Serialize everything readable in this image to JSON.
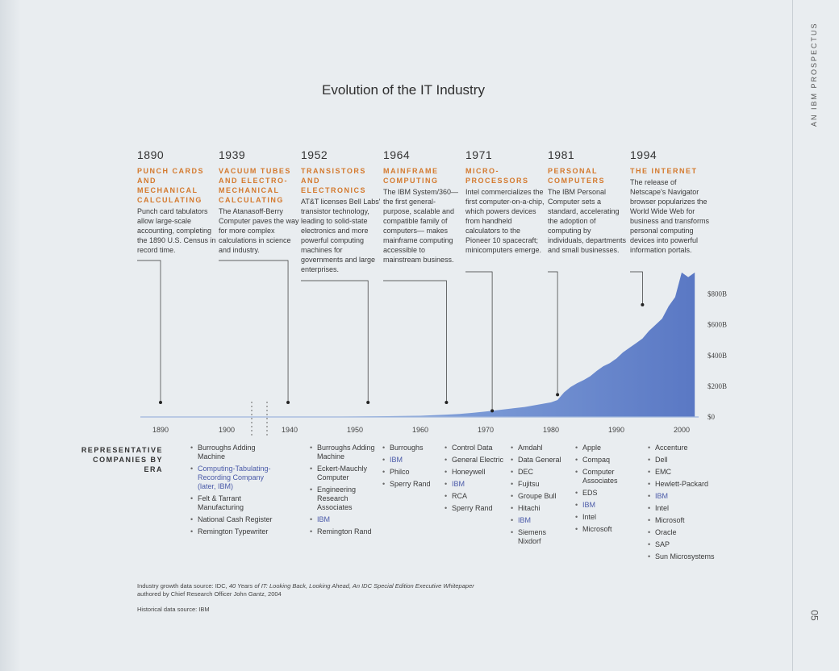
{
  "side_label": "AN IBM PROSPECTUS",
  "page_number": "05",
  "title": "Evolution of the IT Industry",
  "eras": [
    {
      "year": "1890",
      "heading": "PUNCH CARDS AND MECHANICAL CALCULATING",
      "text": "Punch card tabulators allow large-scale accounting, completing the 1890 U.S. Census in record time."
    },
    {
      "year": "1939",
      "heading": "VACUUM TUBES AND ELECTRO-MECHANICAL CALCULATING",
      "text": "The Atanasoff-Berry Computer paves the way for more complex calculations in science and industry."
    },
    {
      "year": "1952",
      "heading": "TRANSISTORS AND ELECTRONICS",
      "text": "AT&T licenses Bell Labs' transistor technology, leading to solid-state electronics and more powerful computing machines for governments and large enterprises."
    },
    {
      "year": "1964",
      "heading": "MAINFRAME COMPUTING",
      "text": "The IBM System/360— the first general-purpose, scalable and compatible family of computers— makes mainframe computing accessible to mainstream business."
    },
    {
      "year": "1971",
      "heading": "MICRO-PROCESSORS",
      "text": "Intel commercializes the first computer-on-a-chip, which powers devices from handheld calculators to the Pioneer 10 spacecraft; minicomputers emerge."
    },
    {
      "year": "1981",
      "heading": "PERSONAL COMPUTERS",
      "text": "The IBM Personal Computer sets a standard, accelerating the adoption of computing by individuals, departments and small businesses."
    },
    {
      "year": "1994",
      "heading": "THE INTERNET",
      "text": "The release of Netscape's Navigator browser popularizes the World Wide Web for business and transforms personal computing devices into powerful information portals."
    }
  ],
  "representative_label": "REPRESENTATIVE COMPANIES BY ERA",
  "company_columns": [
    {
      "items": [
        {
          "name": "Burroughs Adding Machine",
          "ibm": false
        },
        {
          "name": "Computing-Tabulating-Recording Company (later, IBM)",
          "ibm": true
        },
        {
          "name": "Felt & Tarrant Manufacturing",
          "ibm": false
        },
        {
          "name": "National Cash Register",
          "ibm": false
        },
        {
          "name": "Remington Typewriter",
          "ibm": false
        }
      ]
    },
    {
      "items": [
        {
          "name": "Burroughs Adding Machine",
          "ibm": false
        },
        {
          "name": "Eckert-Mauchly Computer",
          "ibm": false
        },
        {
          "name": "Engineering Research Associates",
          "ibm": false
        },
        {
          "name": "IBM",
          "ibm": true
        },
        {
          "name": "Remington Rand",
          "ibm": false
        }
      ]
    },
    {
      "items": [
        {
          "name": "Burroughs",
          "ibm": false
        },
        {
          "name": "IBM",
          "ibm": true
        },
        {
          "name": "Philco",
          "ibm": false
        },
        {
          "name": "Sperry Rand",
          "ibm": false
        }
      ]
    },
    {
      "items": [
        {
          "name": "Control Data",
          "ibm": false
        },
        {
          "name": "General Electric",
          "ibm": false
        },
        {
          "name": "Honeywell",
          "ibm": false
        },
        {
          "name": "IBM",
          "ibm": true
        },
        {
          "name": "RCA",
          "ibm": false
        },
        {
          "name": "Sperry Rand",
          "ibm": false
        }
      ]
    },
    {
      "items": [
        {
          "name": "Amdahl",
          "ibm": false
        },
        {
          "name": "Data General",
          "ibm": false
        },
        {
          "name": "DEC",
          "ibm": false
        },
        {
          "name": "Fujitsu",
          "ibm": false
        },
        {
          "name": "Groupe Bull",
          "ibm": false
        },
        {
          "name": "Hitachi",
          "ibm": false
        },
        {
          "name": "IBM",
          "ibm": true
        },
        {
          "name": "Siemens Nixdorf",
          "ibm": false
        }
      ]
    },
    {
      "items": [
        {
          "name": "Apple",
          "ibm": false
        },
        {
          "name": "Compaq",
          "ibm": false
        },
        {
          "name": "Computer Associates",
          "ibm": false
        },
        {
          "name": "EDS",
          "ibm": false
        },
        {
          "name": "IBM",
          "ibm": true
        },
        {
          "name": "Intel",
          "ibm": false
        },
        {
          "name": "Microsoft",
          "ibm": false
        }
      ]
    },
    {
      "items": [
        {
          "name": "Accenture",
          "ibm": false
        },
        {
          "name": "Dell",
          "ibm": false
        },
        {
          "name": "EMC",
          "ibm": false
        },
        {
          "name": "Hewlett-Packard",
          "ibm": false
        },
        {
          "name": "IBM",
          "ibm": true
        },
        {
          "name": "Intel",
          "ibm": false
        },
        {
          "name": "Microsoft",
          "ibm": false
        },
        {
          "name": "Oracle",
          "ibm": false
        },
        {
          "name": "SAP",
          "ibm": false
        },
        {
          "name": "Sun Microsystems",
          "ibm": false
        }
      ]
    }
  ],
  "footnote": {
    "line1_pre": "Industry growth data source: IDC, ",
    "line1_italic": "40 Years of IT: Looking Back, Looking Ahead, An IDC Special Edition Executive Whitepaper",
    "line2": "authored by Chief Research Officer John Gantz, 2004",
    "line3": "Historical data source: IBM"
  },
  "colors": {
    "accent_orange": "#d4792d",
    "area_fill": "#5a78c4",
    "ibm_blue": "#4a5aa8"
  },
  "chart_data": {
    "type": "area",
    "xlabel": "",
    "ylabel": "",
    "x_ticks": [
      "1890",
      "1900",
      "1940",
      "1950",
      "1960",
      "1970",
      "1980",
      "1990",
      "2000"
    ],
    "y_ticks": [
      "$0",
      "$200B",
      "$400B",
      "$600B",
      "$800B"
    ],
    "ylim": [
      0,
      1000
    ],
    "axis_break": "between 1900 and 1940",
    "x": [
      1890,
      1900,
      1940,
      1950,
      1955,
      1960,
      1964,
      1966,
      1968,
      1970,
      1972,
      1974,
      1976,
      1978,
      1980,
      1981,
      1982,
      1983,
      1984,
      1985,
      1986,
      1987,
      1988,
      1989,
      1990,
      1991,
      1992,
      1993,
      1994,
      1995,
      1996,
      1997,
      1998,
      1999,
      2000,
      2001,
      2002
    ],
    "values": [
      1,
      1,
      1,
      3,
      5,
      8,
      15,
      20,
      27,
      35,
      45,
      55,
      65,
      80,
      95,
      110,
      160,
      195,
      220,
      240,
      265,
      300,
      330,
      350,
      380,
      420,
      450,
      480,
      510,
      560,
      600,
      640,
      720,
      780,
      940,
      910,
      940
    ],
    "era_markers": [
      {
        "year": 1890,
        "value": 0
      },
      {
        "year": 1939,
        "value": 0
      },
      {
        "year": 1952,
        "value": 0
      },
      {
        "year": 1964,
        "value": 0
      },
      {
        "year": 1971,
        "value": 40
      },
      {
        "year": 1981,
        "value": 145
      },
      {
        "year": 1994,
        "value": 730
      }
    ]
  }
}
